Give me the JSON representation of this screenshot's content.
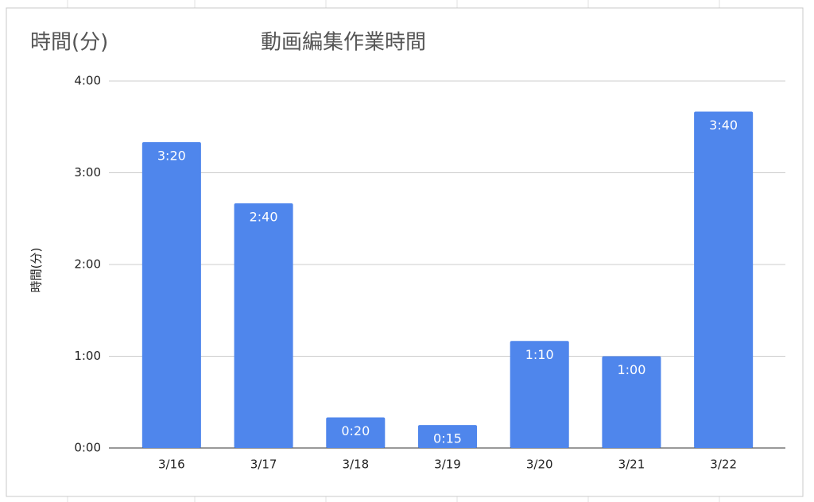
{
  "chart_data": {
    "type": "bar",
    "corner_label": "時間(分)",
    "title": "動画編集作業時間",
    "ylabel": "時間(分)",
    "categories": [
      "3/16",
      "3/17",
      "3/18",
      "3/19",
      "3/20",
      "3/21",
      "3/22"
    ],
    "values": [
      200,
      160,
      20,
      15,
      70,
      60,
      220
    ],
    "value_labels": [
      "3:20",
      "2:40",
      "0:20",
      "0:15",
      "1:10",
      "1:00",
      "3:40"
    ],
    "color": "#4f86ec",
    "ylim": [
      0,
      240
    ],
    "yticks": [
      {
        "value": 0,
        "label": "0:00"
      },
      {
        "value": 60,
        "label": "1:00"
      },
      {
        "value": 120,
        "label": "2:00"
      },
      {
        "value": 180,
        "label": "3:00"
      },
      {
        "value": 240,
        "label": "4:00"
      }
    ],
    "grid": true
  }
}
